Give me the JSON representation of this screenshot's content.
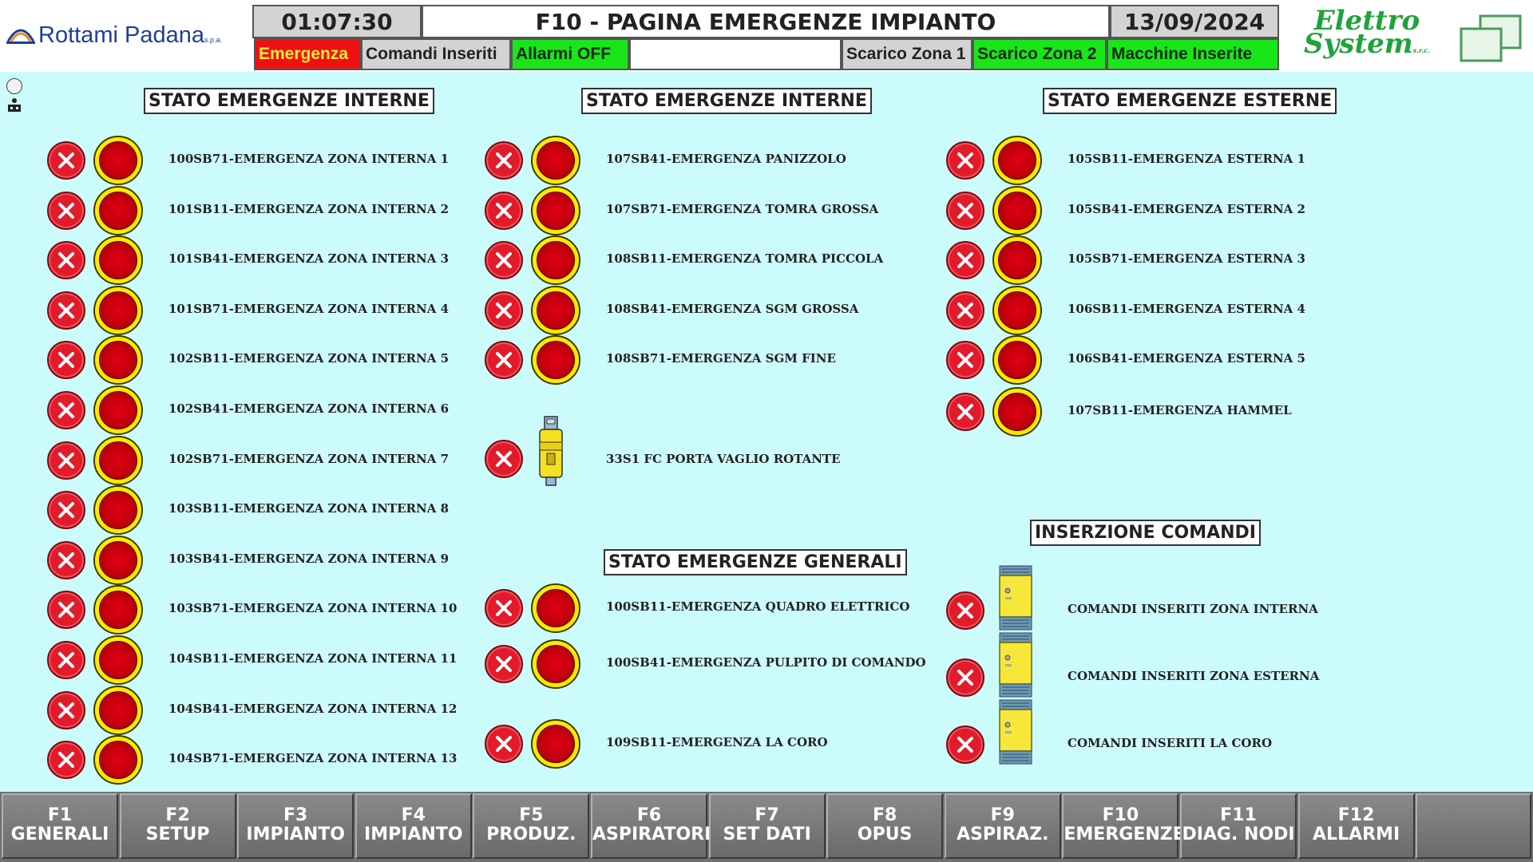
{
  "header": {
    "clock": "01:07:30",
    "title": "F10 - PAGINA EMERGENZE IMPIANTO",
    "date": "13/09/2024",
    "logo_left": {
      "name": "Rottami Padana",
      "suffix": "s.p.a."
    },
    "logo_right": {
      "line1": "Elettro",
      "line2": "System",
      "suffix": "s.r.c."
    }
  },
  "status_bar": {
    "emergenza": "Emergenza",
    "comandi": "Comandi Inseriti",
    "allarmi": "Allarmi OFF",
    "blank": "",
    "zona1": "Scarico Zona 1",
    "zona2": "Scarico Zona 2",
    "macchine": "Macchine Inserite"
  },
  "colors": {
    "background": "#ccfbfb",
    "alarm_red": "#ee1111",
    "ok_green": "#19e619",
    "neutral_gray": "#d3d3d3",
    "mushroom_ring": "#ffea00"
  },
  "icons": {
    "reset": "x-circle-icon",
    "emergency": "mushroom-button-icon",
    "door": "door-safety-switch-icon",
    "relay": "safety-relay-icon"
  },
  "sections": {
    "col1_title": "STATO EMERGENZE INTERNE",
    "col2_title": "STATO EMERGENZE INTERNE",
    "col3_title": "STATO EMERGENZE ESTERNE",
    "generali_title": "STATO EMERGENZE GENERALI",
    "comandi_title": "INSERZIONE COMANDI"
  },
  "col1": [
    "100SB71-EMERGENZA ZONA INTERNA 1",
    "101SB11-EMERGENZA ZONA INTERNA 2",
    "101SB41-EMERGENZA ZONA INTERNA 3",
    "101SB71-EMERGENZA ZONA INTERNA 4",
    "102SB11-EMERGENZA ZONA INTERNA 5",
    "102SB41-EMERGENZA ZONA INTERNA 6",
    "102SB71-EMERGENZA ZONA INTERNA 7",
    "103SB11-EMERGENZA ZONA INTERNA 8",
    "103SB41-EMERGENZA ZONA INTERNA 9",
    "103SB71-EMERGENZA ZONA INTERNA 10",
    "104SB11-EMERGENZA ZONA INTERNA 11",
    "104SB41-EMERGENZA ZONA INTERNA 12",
    "104SB71-EMERGENZA ZONA INTERNA 13"
  ],
  "col2": [
    "107SB41-EMERGENZA PANIZZOLO",
    "107SB71-EMERGENZA TOMRA GROSSA",
    "108SB11-EMERGENZA TOMRA PICCOLA",
    "108SB41-EMERGENZA SGM GROSSA",
    "108SB71-EMERGENZA SGM FINE"
  ],
  "door": "33S1 FC PORTA VAGLIO ROTANTE",
  "generali": [
    "100SB11-EMERGENZA QUADRO ELETTRICO",
    "100SB41-EMERGENZA PULPITO DI COMANDO",
    "109SB11-EMERGENZA LA CORO"
  ],
  "col3": [
    "105SB11-EMERGENZA ESTERNA 1",
    "105SB41-EMERGENZA ESTERNA 2",
    "105SB71-EMERGENZA ESTERNA 3",
    "106SB11-EMERGENZA ESTERNA 4",
    "106SB41-EMERGENZA ESTERNA 5",
    "107SB11-EMERGENZA HAMMEL"
  ],
  "comandi": [
    "COMANDI INSERITI ZONA INTERNA",
    "COMANDI INSERITI ZONA ESTERNA",
    "COMANDI INSERITI LA CORO"
  ],
  "fkeys": [
    {
      "key": "F1",
      "label": "GENERALI"
    },
    {
      "key": "F2",
      "label": "SETUP"
    },
    {
      "key": "F3",
      "label": "IMPIANTO"
    },
    {
      "key": "F4",
      "label": "IMPIANTO"
    },
    {
      "key": "F5",
      "label": "PRODUZ."
    },
    {
      "key": "F6",
      "label": "ASPIRATORI"
    },
    {
      "key": "F7",
      "label": "SET DATI"
    },
    {
      "key": "F8",
      "label": "OPUS"
    },
    {
      "key": "F9",
      "label": "ASPIRAZ."
    },
    {
      "key": "F10",
      "label": "EMERGENZE"
    },
    {
      "key": "F11",
      "label": "DIAG. NODI"
    },
    {
      "key": "F12",
      "label": "ALLARMI"
    },
    {
      "key": "",
      "label": ""
    }
  ]
}
